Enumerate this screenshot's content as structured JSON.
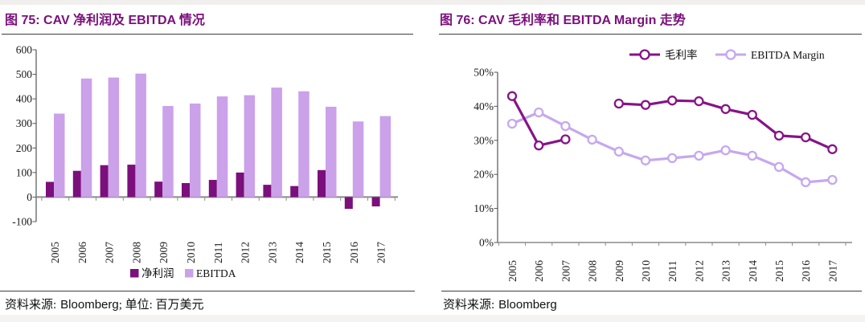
{
  "page": {
    "background": "#ffffff",
    "top_strip_color": "#f1efed",
    "bottom_strip_color": "#f4f3f1",
    "accent_purple": "#7b0f7c",
    "light_purple": "#cba1ea",
    "axis_gray": "#8a8a8a",
    "divider_color": "#3d3d3d"
  },
  "panels": [
    {
      "figure_label": "图 75",
      "title": "图 75: CAV 净利润及 EBITDA 情况",
      "source_label": "资料来源:",
      "source_name": "Bloomberg",
      "source_extra": "; 单位: 百万美元"
    },
    {
      "figure_label": "图 76",
      "title": "图 76: CAV 毛利率和 EBITDA Margin 走势",
      "source_label": "资料来源:",
      "source_name": "Bloomberg",
      "source_extra": ""
    }
  ],
  "chart_data": [
    {
      "type": "bar",
      "title": "CAV 净利润及 EBITDA 情况",
      "unit": "百万美元",
      "categories": [
        "2005",
        "2006",
        "2007",
        "2008",
        "2009",
        "2010",
        "2011",
        "2012",
        "2013",
        "2014",
        "2015",
        "2016",
        "2017"
      ],
      "series": [
        {
          "name": "净利润",
          "slug": "net-profit",
          "color": "#7b0f7c",
          "values": [
            62,
            107,
            130,
            132,
            63,
            57,
            70,
            100,
            50,
            45,
            110,
            -48,
            -38
          ]
        },
        {
          "name": "EBITDA",
          "slug": "ebitda",
          "color": "#cba1ea",
          "values": [
            340,
            483,
            487,
            503,
            371,
            381,
            410,
            415,
            446,
            431,
            368,
            308,
            330
          ]
        }
      ],
      "ylim": [
        -100,
        600
      ],
      "yticks": [
        600,
        500,
        400,
        300,
        200,
        100,
        0,
        -100
      ],
      "legend_position": "bottom",
      "grid": false
    },
    {
      "type": "line",
      "title": "CAV 毛利率和 EBITDA Margin 走势",
      "categories": [
        "2005",
        "2006",
        "2007",
        "2008",
        "2009",
        "2010",
        "2011",
        "2012",
        "2013",
        "2014",
        "2015",
        "2016",
        "2017"
      ],
      "series": [
        {
          "name": "毛利率",
          "slug": "gross-margin",
          "color": "#871388",
          "values": [
            43.0,
            28.5,
            30.3,
            null,
            40.8,
            40.4,
            41.7,
            41.5,
            39.2,
            37.5,
            31.4,
            30.9,
            27.4
          ]
        },
        {
          "name": "EBITDA Margin",
          "slug": "ebitda-margin",
          "color": "#c5a8ef",
          "values": [
            34.9,
            38.2,
            34.2,
            30.2,
            26.7,
            24.1,
            24.8,
            25.5,
            27.1,
            25.5,
            22.2,
            17.7,
            18.4
          ]
        }
      ],
      "ylim": [
        0,
        50
      ],
      "ytick_labels": [
        "0%",
        "10%",
        "20%",
        "30%",
        "40%",
        "50%"
      ],
      "marker": "open-circle",
      "legend_position": "top",
      "grid": false
    }
  ]
}
